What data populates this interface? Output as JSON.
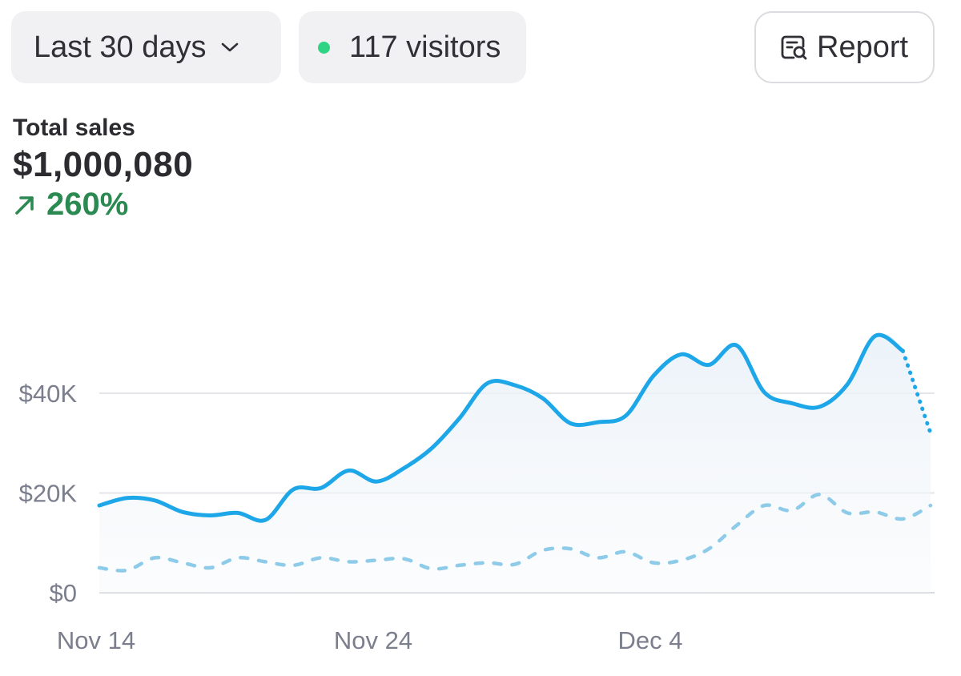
{
  "filters": {
    "range_label": "Last 30 days",
    "visitors_label": "117 visitors",
    "report_label": "Report"
  },
  "summary": {
    "label": "Total sales",
    "value": "$1,000,080",
    "change": "260%"
  },
  "colors": {
    "primary_line": "#1ea7e8",
    "comparison_line": "#8ecbe9",
    "positive": "#2a8a52",
    "live_dot": "#2fd384"
  },
  "chart_data": {
    "type": "line",
    "title": "",
    "x_tick_labels": [
      "Nov 14",
      "Nov 24",
      "Dec 4"
    ],
    "y_tick_labels": [
      "$0",
      "$20K",
      "$40K"
    ],
    "y_ticks": [
      0,
      20000,
      40000
    ],
    "ylim": [
      0,
      55000
    ],
    "x": [
      "Nov 14",
      "Nov 15",
      "Nov 16",
      "Nov 17",
      "Nov 18",
      "Nov 19",
      "Nov 20",
      "Nov 21",
      "Nov 22",
      "Nov 23",
      "Nov 24",
      "Nov 25",
      "Nov 26",
      "Nov 27",
      "Nov 28",
      "Nov 29",
      "Nov 30",
      "Dec 1",
      "Dec 2",
      "Dec 3",
      "Dec 4",
      "Dec 5",
      "Dec 6",
      "Dec 7",
      "Dec 8",
      "Dec 9",
      "Dec 10",
      "Dec 11",
      "Dec 12",
      "Dec 13",
      "Dec 14"
    ],
    "grid": true,
    "series": [
      {
        "style": "solid-fill",
        "values": [
          17500,
          19000,
          18500,
          16200,
          15500,
          16000,
          14600,
          20700,
          21000,
          24500,
          22300,
          25000,
          29000,
          35000,
          42000,
          41600,
          39000,
          34000,
          34200,
          35500,
          43500,
          47800,
          45700,
          49600,
          40200,
          38000,
          37300,
          41800,
          51500,
          48500,
          32000
        ],
        "projected_from_index": 29
      },
      {
        "style": "dotted",
        "values": [
          5000,
          4500,
          7000,
          6000,
          5000,
          7000,
          6200,
          5500,
          7000,
          6200,
          6500,
          6800,
          4800,
          5500,
          6000,
          5700,
          8500,
          8800,
          7000,
          8200,
          6000,
          6500,
          8800,
          13500,
          17500,
          16500,
          19700,
          16000,
          16200,
          14800,
          17500
        ]
      }
    ]
  }
}
